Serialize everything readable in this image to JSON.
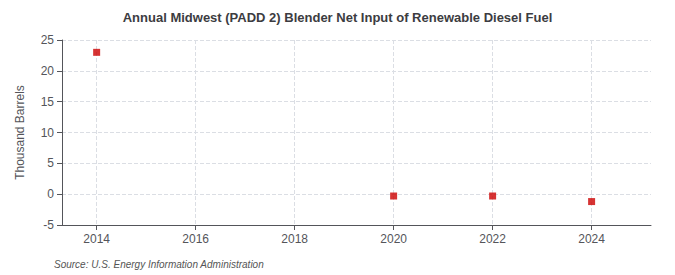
{
  "chart_data": {
    "type": "scatter",
    "title": "Annual Midwest (PADD 2) Blender Net Input of Renewable Diesel Fuel",
    "ylabel": "Thousand Barrels",
    "annotations": [
      "Source: U.S. Energy Information Administration"
    ],
    "x": [
      2014,
      2020,
      2022,
      2024
    ],
    "values": [
      23,
      -0.3,
      -0.3,
      -1.2
    ],
    "color": "#cc0000",
    "marker": "square",
    "xlim": [
      2013.3,
      2025.2
    ],
    "xticks": [
      2014,
      2016,
      2018,
      2020,
      2022,
      2024
    ],
    "ylim": [
      -5,
      25
    ],
    "yticks": [
      -5,
      0,
      5,
      10,
      15,
      20,
      25
    ],
    "grid": true
  }
}
